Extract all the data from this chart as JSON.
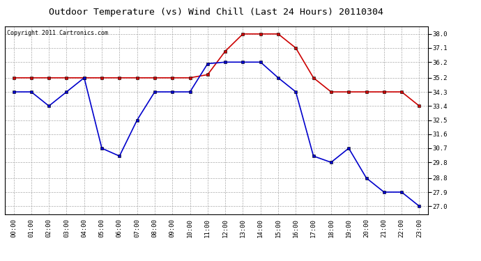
{
  "title": "Outdoor Temperature (vs) Wind Chill (Last 24 Hours) 20110304",
  "copyright": "Copyright 2011 Cartronics.com",
  "hours": [
    "00:00",
    "01:00",
    "02:00",
    "03:00",
    "04:00",
    "05:00",
    "06:00",
    "07:00",
    "08:00",
    "09:00",
    "10:00",
    "11:00",
    "12:00",
    "13:00",
    "14:00",
    "15:00",
    "16:00",
    "17:00",
    "18:00",
    "19:00",
    "20:00",
    "21:00",
    "22:00",
    "23:00"
  ],
  "temp": [
    35.2,
    35.2,
    35.2,
    35.2,
    35.2,
    35.2,
    35.2,
    35.2,
    35.2,
    35.2,
    35.2,
    35.4,
    36.9,
    38.0,
    38.0,
    38.0,
    37.1,
    35.2,
    34.3,
    34.3,
    34.3,
    34.3,
    34.3,
    33.4
  ],
  "wind_chill": [
    34.3,
    34.3,
    33.4,
    34.3,
    35.2,
    30.7,
    30.2,
    32.5,
    34.3,
    34.3,
    34.3,
    36.1,
    36.2,
    36.2,
    36.2,
    35.2,
    34.3,
    30.2,
    29.8,
    30.7,
    28.8,
    27.9,
    27.9,
    27.0
  ],
  "temp_color": "#cc0000",
  "wind_chill_color": "#0000cc",
  "marker": "s",
  "marker_size": 3,
  "line_width": 1.2,
  "ylim": [
    26.5,
    38.5
  ],
  "yticks": [
    38.0,
    37.1,
    36.2,
    35.2,
    34.3,
    33.4,
    32.5,
    31.6,
    30.7,
    29.8,
    28.8,
    27.9,
    27.0
  ],
  "background_color": "#ffffff",
  "grid_color": "#aaaaaa",
  "title_fontsize": 9.5,
  "copyright_fontsize": 6,
  "tick_fontsize": 6.5
}
